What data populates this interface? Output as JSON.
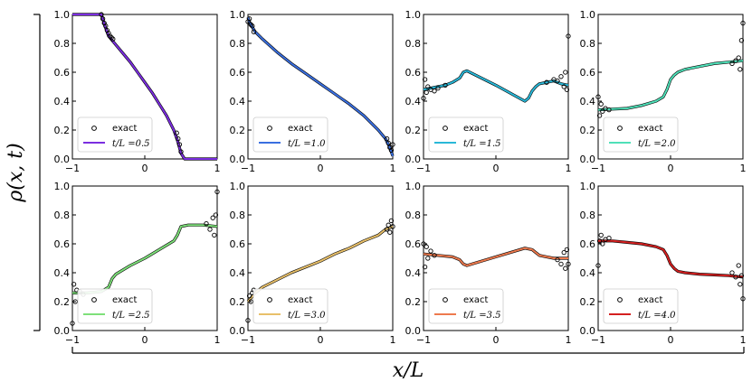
{
  "figure": {
    "ylabel": "ρ(x, t)",
    "xlabel": "x/L"
  },
  "chart_data": [
    {
      "type": "line",
      "panel": 1,
      "legend": [
        "exact",
        "t/L =0.5"
      ],
      "series": [
        {
          "name": "t/L =0.5",
          "color": "#7b2ee0",
          "x": [
            -1,
            -0.65,
            -0.6,
            -0.55,
            -0.5,
            -0.4,
            -0.3,
            -0.2,
            -0.1,
            0,
            0.1,
            0.2,
            0.3,
            0.4,
            0.45,
            0.5,
            0.55,
            0.6,
            1
          ],
          "y": [
            1,
            1,
            1,
            0.92,
            0.85,
            0.79,
            0.73,
            0.67,
            0.6,
            0.53,
            0.46,
            0.38,
            0.3,
            0.2,
            0.13,
            0.04,
            0,
            0,
            0
          ]
        },
        {
          "name": "exact",
          "x": [
            -0.6,
            -0.58,
            -0.56,
            -0.54,
            -0.52,
            -0.5,
            -0.48,
            -0.46,
            -0.44,
            0.44,
            0.46,
            0.48,
            0.5
          ],
          "y": [
            1,
            0.97,
            0.94,
            0.92,
            0.89,
            0.87,
            0.85,
            0.84,
            0.83,
            0.18,
            0.14,
            0.1,
            0.05
          ]
        }
      ],
      "xlim": [
        -1,
        1
      ],
      "ylim": [
        0,
        1
      ],
      "xticks": [
        "−1",
        "0",
        "1"
      ],
      "yticks": [
        "0.0",
        "0.2",
        "0.4",
        "0.6",
        "0.8",
        "1.0"
      ]
    },
    {
      "type": "line",
      "panel": 2,
      "legend": [
        "exact",
        "t/L =1.0"
      ],
      "series": [
        {
          "name": "t/L =1.0",
          "color": "#3a6fe0",
          "x": [
            -1,
            -0.98,
            -0.95,
            -0.9,
            -0.8,
            -0.6,
            -0.4,
            -0.2,
            0,
            0.2,
            0.4,
            0.6,
            0.8,
            0.9,
            0.95,
            0.98,
            1
          ],
          "y": [
            0.98,
            0.95,
            0.92,
            0.88,
            0.83,
            0.74,
            0.66,
            0.59,
            0.52,
            0.45,
            0.38,
            0.3,
            0.2,
            0.14,
            0.09,
            0.05,
            0.02
          ]
        },
        {
          "name": "exact",
          "x": [
            -1,
            -0.98,
            -0.96,
            -0.94,
            -0.92,
            0.92,
            0.94,
            0.96,
            0.98,
            1
          ],
          "y": [
            0.95,
            0.97,
            0.93,
            0.92,
            0.88,
            0.14,
            0.11,
            0.08,
            0.06,
            0.1
          ]
        }
      ],
      "xlim": [
        -1,
        1
      ],
      "ylim": [
        0,
        1
      ],
      "xticks": [
        "−1",
        "0",
        "1"
      ],
      "yticks": [
        "0.0",
        "0.2",
        "0.4",
        "0.6",
        "0.8",
        "1.0"
      ]
    },
    {
      "type": "line",
      "panel": 3,
      "legend": [
        "exact",
        "t/L =1.5"
      ],
      "series": [
        {
          "name": "t/L =1.5",
          "color": "#29b8d8",
          "x": [
            -1,
            -0.9,
            -0.8,
            -0.7,
            -0.6,
            -0.5,
            -0.45,
            -0.4,
            0,
            0.4,
            0.45,
            0.5,
            0.55,
            0.6,
            0.7,
            0.8,
            0.9,
            1
          ],
          "y": [
            0.48,
            0.49,
            0.5,
            0.51,
            0.53,
            0.56,
            0.6,
            0.61,
            0.51,
            0.4,
            0.42,
            0.47,
            0.5,
            0.52,
            0.53,
            0.54,
            0.52,
            0.51
          ]
        },
        {
          "name": "exact",
          "x": [
            -1,
            -0.98,
            -0.96,
            -0.94,
            -0.9,
            -0.85,
            -0.8,
            -0.7,
            0.7,
            0.8,
            0.85,
            0.9,
            0.94,
            0.96,
            0.98,
            1
          ],
          "y": [
            0.42,
            0.55,
            0.46,
            0.5,
            0.48,
            0.47,
            0.49,
            0.51,
            0.53,
            0.55,
            0.54,
            0.57,
            0.5,
            0.6,
            0.48,
            0.85
          ]
        }
      ],
      "xlim": [
        -1,
        1
      ],
      "ylim": [
        0,
        1
      ],
      "xticks": [
        "−1",
        "0",
        "1"
      ],
      "yticks": [
        "0.0",
        "0.2",
        "0.4",
        "0.6",
        "0.8",
        "1.0"
      ]
    },
    {
      "type": "line",
      "panel": 4,
      "legend": [
        "exact",
        "t/L =2.0"
      ],
      "series": [
        {
          "name": "t/L =2.0",
          "color": "#4fe0b8",
          "x": [
            -1,
            -0.8,
            -0.6,
            -0.4,
            -0.2,
            -0.1,
            -0.05,
            0,
            0.05,
            0.1,
            0.2,
            0.4,
            0.6,
            0.8,
            1
          ],
          "y": [
            0.34,
            0.345,
            0.35,
            0.37,
            0.4,
            0.43,
            0.48,
            0.55,
            0.58,
            0.6,
            0.62,
            0.64,
            0.66,
            0.67,
            0.68
          ]
        },
        {
          "name": "exact",
          "x": [
            -1,
            -0.98,
            -0.96,
            -0.94,
            -0.9,
            -0.85,
            0.85,
            0.9,
            0.94,
            0.96,
            0.98,
            1
          ],
          "y": [
            0.43,
            0.3,
            0.38,
            0.33,
            0.35,
            0.34,
            0.66,
            0.68,
            0.7,
            0.62,
            0.82,
            0.94
          ]
        }
      ],
      "xlim": [
        -1,
        1
      ],
      "ylim": [
        0,
        1
      ],
      "xticks": [
        "−1",
        "0",
        "1"
      ],
      "yticks": [
        "0.0",
        "0.2",
        "0.4",
        "0.6",
        "0.8",
        "1.0"
      ]
    },
    {
      "type": "line",
      "panel": 5,
      "legend": [
        "exact",
        "t/L =2.5"
      ],
      "series": [
        {
          "name": "t/L =2.5",
          "color": "#7ee07a",
          "x": [
            -1,
            -0.8,
            -0.6,
            -0.5,
            -0.45,
            -0.4,
            -0.2,
            0,
            0.2,
            0.4,
            0.45,
            0.5,
            0.6,
            0.8,
            1
          ],
          "y": [
            0.26,
            0.26,
            0.27,
            0.3,
            0.36,
            0.39,
            0.45,
            0.5,
            0.56,
            0.62,
            0.66,
            0.72,
            0.73,
            0.73,
            0.72
          ]
        },
        {
          "name": "exact",
          "x": [
            -1,
            -0.98,
            -0.96,
            -0.94,
            -0.9,
            -0.85,
            0.85,
            0.9,
            0.94,
            0.96,
            0.98,
            1
          ],
          "y": [
            0.05,
            0.32,
            0.2,
            0.28,
            0.27,
            0.25,
            0.74,
            0.7,
            0.78,
            0.66,
            0.8,
            0.96
          ]
        }
      ],
      "xlim": [
        -1,
        1
      ],
      "ylim": [
        0,
        1
      ],
      "xticks": [
        "−1",
        "0",
        "1"
      ],
      "yticks": [
        "0.0",
        "0.2",
        "0.4",
        "0.6",
        "0.8",
        "1.0"
      ]
    },
    {
      "type": "line",
      "panel": 6,
      "legend": [
        "exact",
        "t/L =3.0"
      ],
      "series": [
        {
          "name": "t/L =3.0",
          "color": "#e8c06a",
          "x": [
            -1,
            -0.9,
            -0.8,
            -0.6,
            -0.4,
            -0.2,
            0,
            0.2,
            0.4,
            0.6,
            0.8,
            0.9,
            1
          ],
          "y": [
            0.2,
            0.26,
            0.3,
            0.35,
            0.4,
            0.44,
            0.48,
            0.53,
            0.57,
            0.62,
            0.66,
            0.7,
            0.72
          ]
        },
        {
          "name": "exact",
          "x": [
            -1,
            -0.98,
            -0.96,
            -0.94,
            -0.92,
            0.92,
            0.94,
            0.96,
            0.98,
            1
          ],
          "y": [
            0.07,
            0.24,
            0.2,
            0.26,
            0.28,
            0.7,
            0.73,
            0.68,
            0.76,
            0.72
          ]
        }
      ],
      "xlim": [
        -1,
        1
      ],
      "ylim": [
        0,
        1
      ],
      "xticks": [
        "−1",
        "0",
        "1"
      ],
      "yticks": [
        "0.0",
        "0.2",
        "0.4",
        "0.6",
        "0.8",
        "1.0"
      ]
    },
    {
      "type": "line",
      "panel": 7,
      "legend": [
        "exact",
        "t/L =3.5"
      ],
      "series": [
        {
          "name": "t/L =3.5",
          "color": "#ee7a4e",
          "x": [
            -1,
            -0.8,
            -0.6,
            -0.5,
            -0.45,
            -0.4,
            0,
            0.4,
            0.5,
            0.55,
            0.6,
            0.7,
            0.8,
            0.9,
            1
          ],
          "y": [
            0.53,
            0.52,
            0.51,
            0.49,
            0.46,
            0.45,
            0.51,
            0.57,
            0.56,
            0.54,
            0.52,
            0.51,
            0.5,
            0.5,
            0.5
          ]
        },
        {
          "name": "exact",
          "x": [
            -1,
            -0.98,
            -0.96,
            -0.94,
            -0.9,
            -0.85,
            0.85,
            0.9,
            0.94,
            0.96,
            0.98,
            1
          ],
          "y": [
            0.6,
            0.44,
            0.58,
            0.5,
            0.55,
            0.52,
            0.49,
            0.46,
            0.54,
            0.43,
            0.56,
            0.46
          ]
        }
      ],
      "xlim": [
        -1,
        1
      ],
      "ylim": [
        0,
        1
      ],
      "xticks": [
        "−1",
        "0",
        "1"
      ],
      "yticks": [
        "0.0",
        "0.2",
        "0.4",
        "0.6",
        "0.8",
        "1.0"
      ]
    },
    {
      "type": "line",
      "panel": 8,
      "legend": [
        "exact",
        "t/L =4.0"
      ],
      "series": [
        {
          "name": "t/L =4.0",
          "color": "#d42020",
          "x": [
            -1,
            -0.8,
            -0.6,
            -0.4,
            -0.2,
            -0.1,
            -0.05,
            0,
            0.05,
            0.1,
            0.2,
            0.4,
            0.6,
            0.8,
            1
          ],
          "y": [
            0.62,
            0.62,
            0.61,
            0.6,
            0.58,
            0.56,
            0.52,
            0.46,
            0.43,
            0.41,
            0.4,
            0.39,
            0.385,
            0.38,
            0.37
          ]
        },
        {
          "name": "exact",
          "x": [
            -1,
            -0.98,
            -0.96,
            -0.94,
            -0.9,
            -0.85,
            0.85,
            0.9,
            0.94,
            0.96,
            0.98,
            1
          ],
          "y": [
            0.45,
            0.62,
            0.66,
            0.6,
            0.63,
            0.64,
            0.4,
            0.37,
            0.45,
            0.32,
            0.38,
            0.22
          ]
        }
      ],
      "xlim": [
        -1,
        1
      ],
      "ylim": [
        0,
        1
      ],
      "xticks": [
        "−1",
        "0",
        "1"
      ],
      "yticks": [
        "0.0",
        "0.2",
        "0.4",
        "0.6",
        "0.8",
        "1.0"
      ]
    }
  ]
}
